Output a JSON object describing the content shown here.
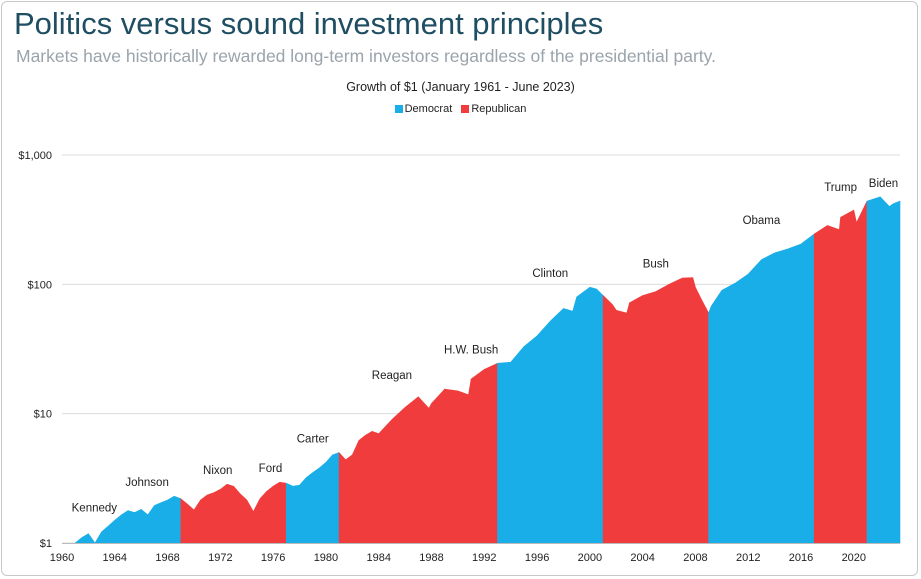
{
  "header": {
    "title": "Politics versus sound investment principles",
    "subtitle": "Markets have historically rewarded long-term investors regardless of the presidential party."
  },
  "chart_data": {
    "type": "area",
    "title": "Growth of $1 (January 1961 - June 2023)",
    "xlabel": "",
    "ylabel": "",
    "yscale": "log",
    "ylim": [
      1,
      1000
    ],
    "xlim": [
      1960,
      2023.5
    ],
    "grid": "horizontal",
    "legend_position": "top-center",
    "legend": [
      {
        "name": "Democrat",
        "color": "#1aaee8"
      },
      {
        "name": "Republican",
        "color": "#f03c3c"
      }
    ],
    "x_ticks": [
      1960,
      1964,
      1968,
      1972,
      1976,
      1980,
      1984,
      1988,
      1992,
      1996,
      2000,
      2004,
      2008,
      2012,
      2016,
      2020
    ],
    "x_tick_labels": [
      "1960",
      "1964",
      "1968",
      "1972",
      "1976",
      "1980",
      "1984",
      "1988",
      "1992",
      "1996",
      "2000",
      "2004",
      "2008",
      "2012",
      "2016",
      "2020"
    ],
    "y_ticks": [
      1,
      10,
      100,
      1000
    ],
    "y_tick_labels": [
      "$1",
      "$10",
      "$100",
      "$1,000"
    ],
    "series": [
      {
        "name": "Growth of $1",
        "x": [
          1961.0,
          1961.5,
          1962.0,
          1962.5,
          1963.0,
          1963.5,
          1964.0,
          1964.5,
          1965.0,
          1965.5,
          1966.0,
          1966.5,
          1967.0,
          1967.5,
          1968.0,
          1968.5,
          1969.0,
          1969.5,
          1970.0,
          1970.5,
          1971.0,
          1971.5,
          1972.0,
          1972.5,
          1973.0,
          1973.5,
          1974.0,
          1974.5,
          1975.0,
          1975.5,
          1976.0,
          1976.5,
          1977.0,
          1977.5,
          1978.0,
          1978.5,
          1979.0,
          1979.5,
          1980.0,
          1980.5,
          1981.0,
          1981.5,
          1982.0,
          1982.5,
          1983.0,
          1983.5,
          1984.0,
          1985.0,
          1986.0,
          1987.0,
          1987.8,
          1988.0,
          1989.0,
          1990.0,
          1990.8,
          1991.0,
          1992.0,
          1993.0,
          1994.0,
          1995.0,
          1996.0,
          1997.0,
          1998.0,
          1998.7,
          1999.0,
          2000.0,
          2000.5,
          2001.0,
          2001.7,
          2002.0,
          2002.8,
          2003.0,
          2004.0,
          2005.0,
          2006.0,
          2007.0,
          2007.8,
          2008.0,
          2008.5,
          2009.0,
          2009.2,
          2010.0,
          2011.0,
          2012.0,
          2013.0,
          2014.0,
          2015.0,
          2016.0,
          2017.0,
          2018.0,
          2018.9,
          2019.0,
          2020.0,
          2020.2,
          2021.0,
          2022.0,
          2022.7,
          2023.0,
          2023.5
        ],
        "values": [
          1.0,
          1.1,
          1.18,
          1.0,
          1.22,
          1.35,
          1.5,
          1.65,
          1.78,
          1.72,
          1.82,
          1.65,
          1.95,
          2.05,
          2.15,
          2.3,
          2.2,
          2.0,
          1.8,
          2.15,
          2.35,
          2.45,
          2.6,
          2.85,
          2.75,
          2.4,
          2.15,
          1.75,
          2.2,
          2.5,
          2.75,
          2.95,
          2.9,
          2.75,
          2.8,
          3.2,
          3.5,
          3.8,
          4.2,
          4.8,
          5.0,
          4.4,
          4.8,
          6.2,
          6.8,
          7.3,
          7.0,
          9.0,
          11.2,
          13.5,
          11.0,
          12.0,
          15.5,
          15.0,
          14.0,
          18.5,
          22.0,
          24.5,
          25.0,
          33.0,
          40.0,
          52.0,
          65.0,
          62.0,
          80.0,
          95.0,
          92.0,
          82.0,
          70.0,
          63.0,
          60.0,
          72.0,
          82.0,
          88.0,
          100.0,
          112.0,
          113.0,
          95.0,
          75.0,
          60.0,
          68.0,
          90.0,
          102.0,
          120.0,
          155.0,
          175.0,
          188.0,
          205.0,
          245.0,
          285.0,
          265.0,
          330.0,
          375.0,
          300.0,
          440.0,
          475.0,
          400.0,
          420.0,
          440.0
        ]
      }
    ],
    "presidencies": [
      {
        "name": "Kennedy",
        "party": "Democrat",
        "start": 1961.0,
        "end": 1963.9
      },
      {
        "name": "Johnson",
        "party": "Democrat",
        "start": 1963.9,
        "end": 1969.0
      },
      {
        "name": "Nixon",
        "party": "Republican",
        "start": 1969.0,
        "end": 1974.6
      },
      {
        "name": "Ford",
        "party": "Republican",
        "start": 1974.6,
        "end": 1977.0
      },
      {
        "name": "Carter",
        "party": "Democrat",
        "start": 1977.0,
        "end": 1981.0
      },
      {
        "name": "Reagan",
        "party": "Republican",
        "start": 1981.0,
        "end": 1989.0
      },
      {
        "name": "H.W. Bush",
        "party": "Republican",
        "start": 1989.0,
        "end": 1993.0
      },
      {
        "name": "Clinton",
        "party": "Democrat",
        "start": 1993.0,
        "end": 2001.0
      },
      {
        "name": "Bush",
        "party": "Republican",
        "start": 2001.0,
        "end": 2009.0
      },
      {
        "name": "Obama",
        "party": "Democrat",
        "start": 2009.0,
        "end": 2017.0
      },
      {
        "name": "Trump",
        "party": "Republican",
        "start": 2017.0,
        "end": 2021.0
      },
      {
        "name": "Biden",
        "party": "Democrat",
        "start": 2021.0,
        "end": 2023.5
      }
    ]
  }
}
